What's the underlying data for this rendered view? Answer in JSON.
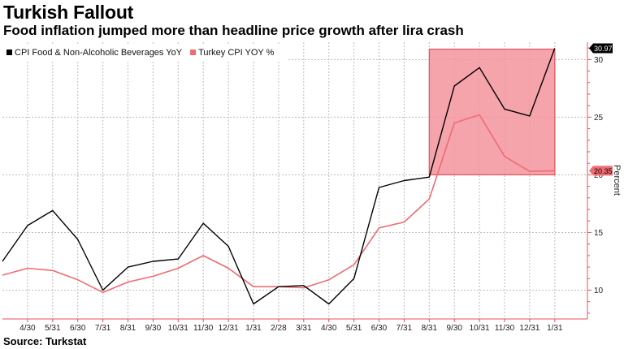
{
  "header": {
    "title": "Turkish Fallout",
    "subtitle": "Food inflation jumped more than headline price growth after lira crash"
  },
  "footer": {
    "source": "Source: Turkstat"
  },
  "colors": {
    "food_series": "#000000",
    "cpi_series": "#f06b73",
    "highlight_fill": "#f5949c",
    "highlight_stroke": "#e8505c",
    "axis": "#e8505c",
    "grid": "#bbbbbb"
  },
  "chart_data": {
    "type": "line",
    "ylabel": "Percent",
    "ylim": [
      7.5,
      31.5
    ],
    "yticks": [
      10,
      15,
      20,
      25,
      30
    ],
    "xlim": [
      0,
      23.3
    ],
    "categories": [
      "4/30",
      "5/31",
      "6/30",
      "7/31",
      "8/31",
      "9/30",
      "10/31",
      "11/30",
      "12/31",
      "1/31",
      "2/28",
      "3/31",
      "4/30",
      "5/31",
      "6/30",
      "7/31",
      "8/31",
      "9/30",
      "10/31",
      "11/30",
      "12/31",
      "1/31"
    ],
    "category_positions": [
      1,
      2,
      3,
      4,
      5,
      6,
      7,
      8,
      9,
      10,
      11,
      12,
      13,
      14,
      15,
      16,
      17,
      18,
      19,
      20,
      21,
      22
    ],
    "legend": [
      {
        "label": "CPI Food & Non-Alcoholic Beverages YoY",
        "color": "#000000"
      },
      {
        "label": "Turkey CPI YOY %",
        "color": "#f06b73"
      }
    ],
    "highlight": {
      "x_from": 17,
      "x_to": 22,
      "y_from": 20,
      "y_to": 30.9
    },
    "series": [
      {
        "name": "CPI Food & Non-Alcoholic Beverages YoY",
        "color": "#000000",
        "x": [
          0,
          1,
          2,
          3,
          4,
          5,
          6,
          7,
          8,
          9,
          10,
          11,
          12,
          13,
          14,
          15,
          16,
          17,
          18,
          19,
          20,
          21,
          22
        ],
        "values": [
          12.5,
          15.6,
          16.9,
          14.4,
          10.0,
          12.0,
          12.5,
          12.7,
          15.8,
          13.8,
          8.8,
          10.3,
          10.4,
          8.8,
          11.0,
          18.9,
          19.5,
          19.8,
          27.7,
          29.3,
          25.7,
          25.1,
          30.97
        ],
        "last_value_label": "30.97"
      },
      {
        "name": "Turkey CPI YOY %",
        "color": "#f06b73",
        "x": [
          0,
          1,
          2,
          3,
          4,
          5,
          6,
          7,
          8,
          9,
          10,
          11,
          12,
          13,
          14,
          15,
          16,
          17,
          18,
          19,
          20,
          21,
          22
        ],
        "values": [
          11.3,
          11.9,
          11.7,
          10.9,
          9.8,
          10.7,
          11.2,
          11.9,
          13.0,
          11.9,
          10.3,
          10.3,
          10.2,
          10.9,
          12.2,
          15.4,
          15.9,
          17.9,
          24.5,
          25.2,
          21.6,
          20.3,
          20.35
        ],
        "last_value_label": "20.35"
      }
    ]
  }
}
